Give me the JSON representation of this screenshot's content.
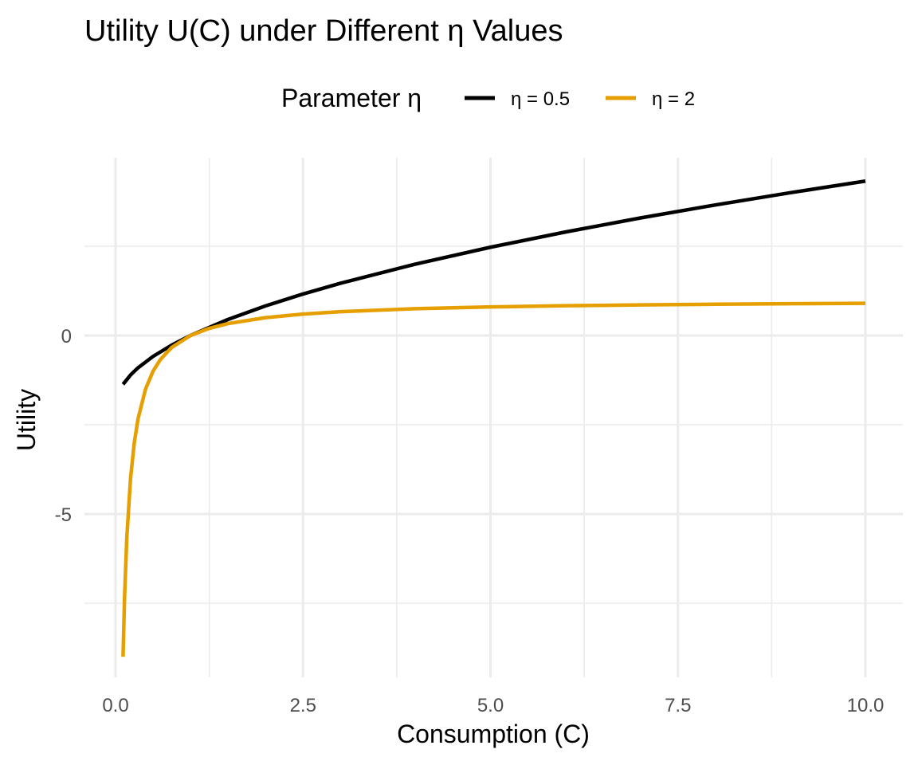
{
  "chart_data": {
    "type": "line",
    "title": "Utility U(C) under Different η Values",
    "xlabel": "Consumption (C)",
    "ylabel": "Utility",
    "xlim": [
      0.1,
      10
    ],
    "ylim": [
      -9,
      4.36
    ],
    "x_ticks": [
      0,
      2.5,
      5,
      7.5,
      10
    ],
    "x_tick_labels": [
      "0.0",
      "2.5",
      "5.0",
      "7.5",
      "10.0"
    ],
    "y_ticks": [
      -5,
      0
    ],
    "y_tick_labels": [
      "-5",
      "0"
    ],
    "grid": true,
    "legend": {
      "title": "Parameter η",
      "position": "top"
    },
    "series": [
      {
        "name": "η = 0.5",
        "color": "#000000",
        "x": [
          0.1,
          0.2,
          0.3,
          0.5,
          0.75,
          1,
          1.5,
          2,
          2.5,
          3,
          4,
          5,
          6,
          7,
          8,
          9,
          10
        ],
        "y": [
          -1.368,
          -1.106,
          -0.905,
          -0.586,
          -0.268,
          0,
          0.449,
          0.828,
          1.162,
          1.464,
          2,
          2.472,
          2.899,
          3.292,
          3.657,
          4,
          4.325
        ]
      },
      {
        "name": "η = 2",
        "color": "#E69F00",
        "x": [
          0.1,
          0.12,
          0.15,
          0.2,
          0.25,
          0.3,
          0.4,
          0.5,
          0.6,
          0.75,
          1,
          1.25,
          1.5,
          2,
          2.5,
          3,
          4,
          5,
          6,
          7,
          8,
          9,
          10
        ],
        "y": [
          -9,
          -7.333,
          -5.667,
          -4,
          -3,
          -2.333,
          -1.5,
          -1,
          -0.667,
          -0.333,
          0,
          0.2,
          0.333,
          0.5,
          0.6,
          0.667,
          0.75,
          0.8,
          0.833,
          0.857,
          0.875,
          0.889,
          0.9
        ]
      }
    ]
  }
}
